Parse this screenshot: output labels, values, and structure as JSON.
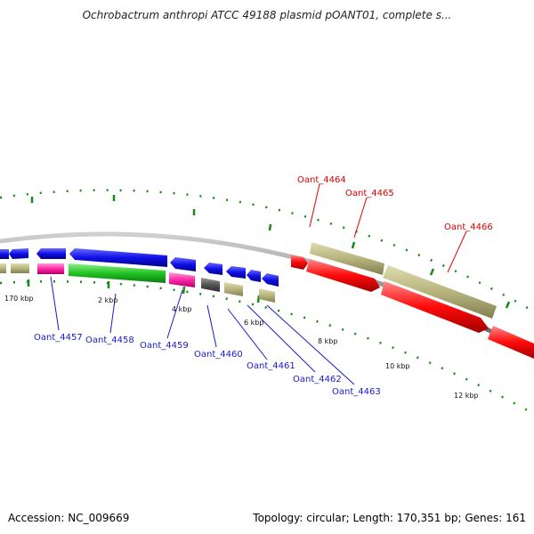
{
  "header": {
    "title": "Ochrobactrum anthropi ATCC 49188 plasmid pOANT01, complete s..."
  },
  "footer": {
    "accession": "Accession: NC_009669",
    "stats": "Topology: circular; Length: 170,351 bp; Genes: 161"
  },
  "colors": {
    "forward_blue": "#1010e8",
    "forward_green": "#22c422",
    "reverse_magenta": "#ff28a8",
    "reverse_tan": "#b7b47d",
    "reverse_gray": "#555555",
    "forward_red": "#ff0a0a",
    "tick_green": "#158c15",
    "backbone_gray": "#8c8c8c",
    "label_blue": "#1a1acc",
    "label_red": "#dd0000"
  },
  "scale_labels": [
    {
      "text": "170 kbp"
    },
    {
      "text": "2 kbp"
    },
    {
      "text": "4 kbp"
    },
    {
      "text": "6 kbp"
    },
    {
      "text": "8 kbp"
    },
    {
      "text": "10 kbp"
    },
    {
      "text": "12 kbp"
    }
  ],
  "gene_labels_forward": [
    {
      "text": "Oant_4464"
    },
    {
      "text": "Oant_4465"
    },
    {
      "text": "Oant_4466"
    }
  ],
  "gene_labels_reverse": [
    {
      "text": "Oant_4457"
    },
    {
      "text": "Oant_4458"
    },
    {
      "text": "Oant_4459"
    },
    {
      "text": "Oant_4460"
    },
    {
      "text": "Oant_4461"
    },
    {
      "text": "Oant_4462"
    },
    {
      "text": "Oant_4463"
    }
  ]
}
